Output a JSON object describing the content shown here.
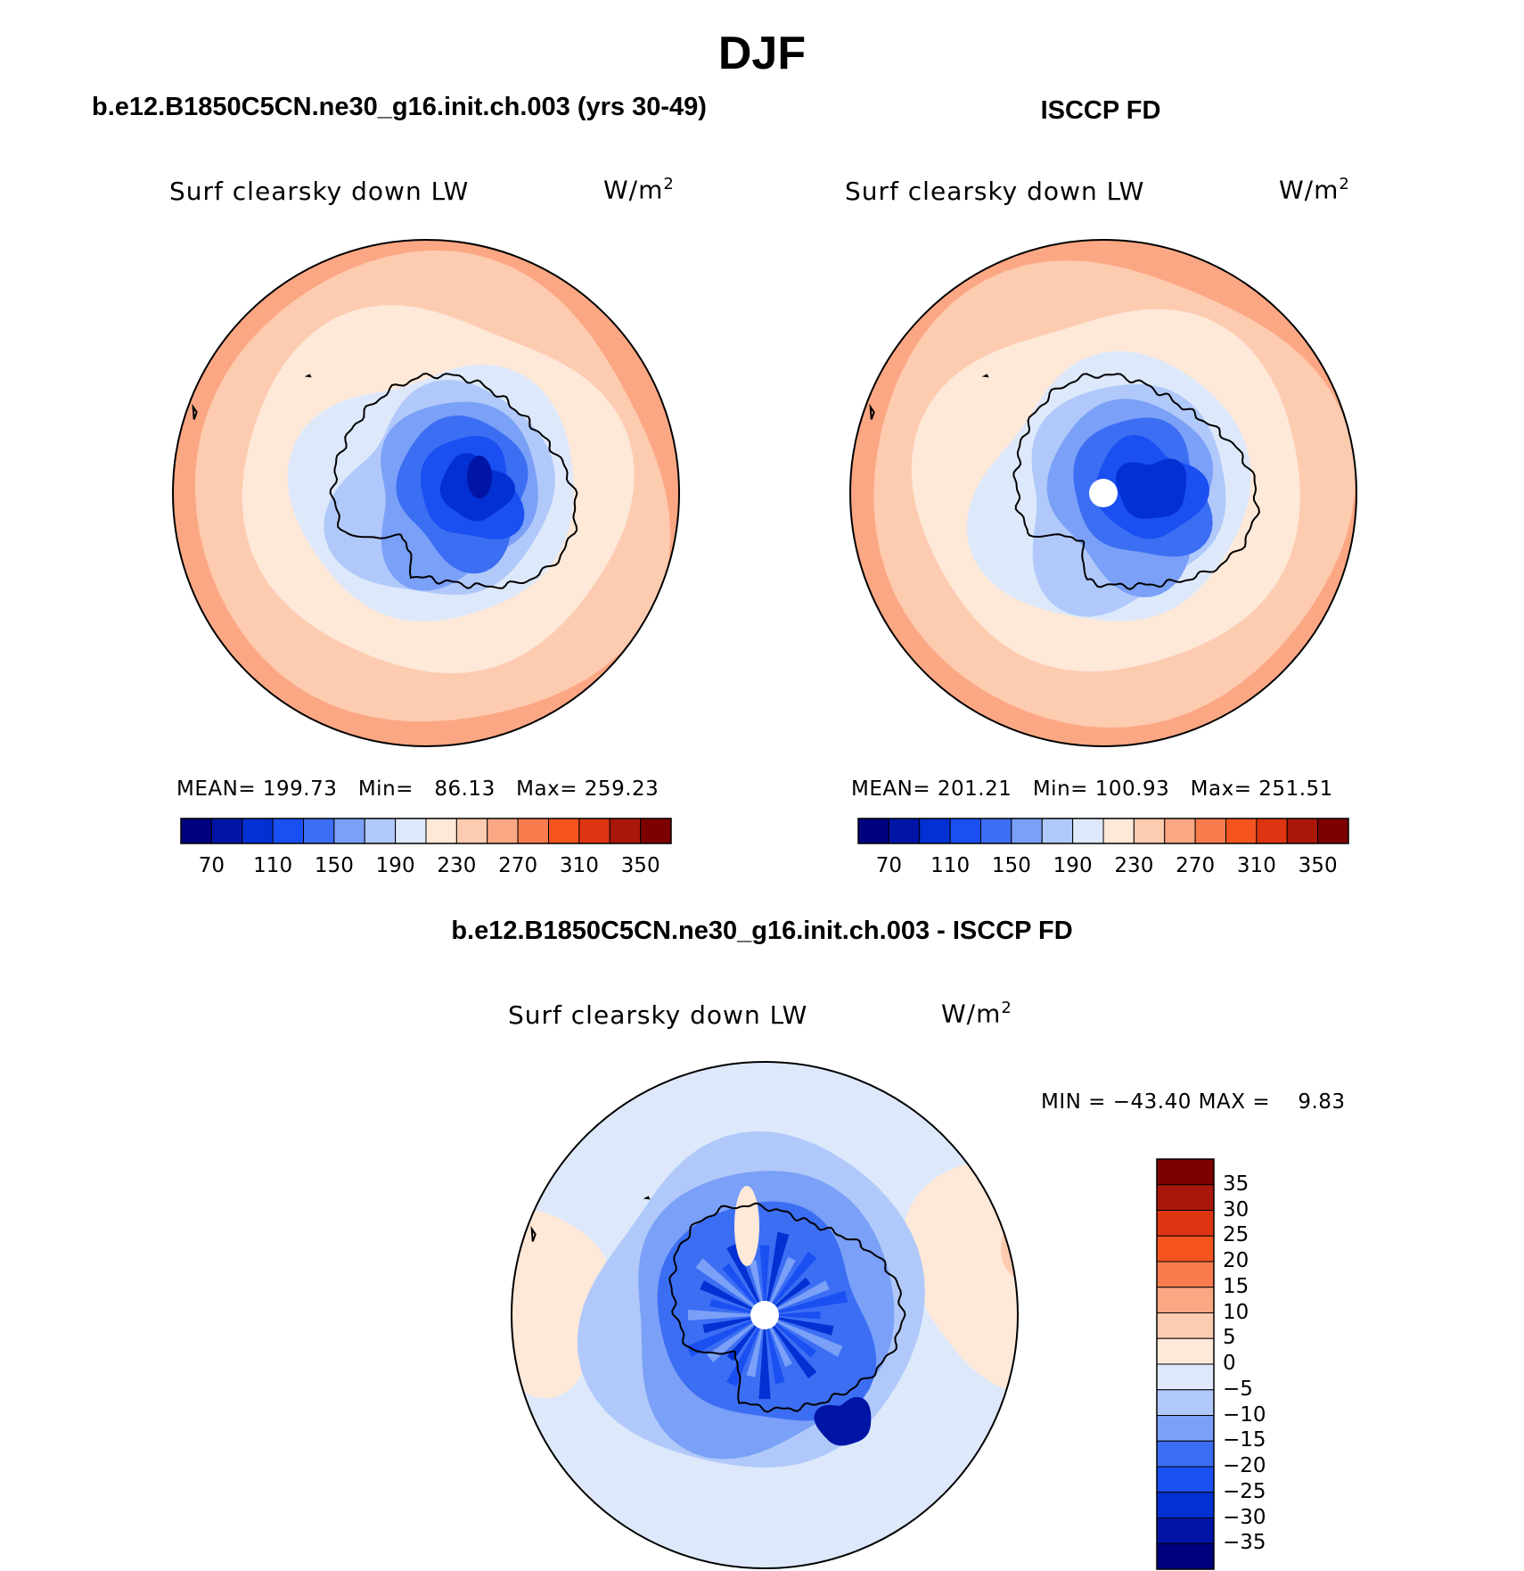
{
  "page_title": "DJF",
  "model_title": "b.e12.B1850C5CN.ne30_g16.init.ch.003 (yrs 30-49)",
  "obs_title": "ISCCP FD",
  "diff_title": "b.e12.B1850C5CN.ne30_g16.init.ch.003 - ISCCP FD",
  "colors": {
    "abs_scale": [
      "#00007f",
      "#0015a6",
      "#0230d2",
      "#1a4ff2",
      "#3c6ef4",
      "#7aa0f7",
      "#b0c9fa",
      "#dde9fb",
      "#fee8d8",
      "#fdcbb0",
      "#fca784",
      "#f97c4f",
      "#f5541f",
      "#dd3512",
      "#a9170b",
      "#7d0000"
    ],
    "diff_scale": [
      "#00007f",
      "#0015a6",
      "#0230d2",
      "#1a4ff2",
      "#3c6ef4",
      "#7aa0f7",
      "#b0c9fa",
      "#dde9fb",
      "#fee8d8",
      "#fdcbb0",
      "#fca784",
      "#f97c4f",
      "#f5541f",
      "#dd3512",
      "#a9170b",
      "#7d0000"
    ]
  },
  "chart_data": [
    {
      "type": "polar-contour-map",
      "panel": "model",
      "title": "b.e12.B1850C5CN.ne30_g16.init.ch.003 (yrs 30-49)",
      "variable": "Surf clearsky down LW",
      "units_base": "W/m",
      "units_exp": "2",
      "stats": {
        "mean_label": "MEAN=",
        "mean": "199.73",
        "min_label": "Min=",
        "min": "86.13",
        "max_label": "Max=",
        "max": "259.23"
      },
      "levels": [
        70,
        110,
        150,
        190,
        230,
        270,
        310,
        350
      ],
      "contour_interval": 20,
      "missing_pole": false
    },
    {
      "type": "polar-contour-map",
      "panel": "obs",
      "title": "ISCCP FD",
      "variable": "Surf clearsky down LW",
      "units_base": "W/m",
      "units_exp": "2",
      "stats": {
        "mean_label": "MEAN=",
        "mean": "201.21",
        "min_label": "Min=",
        "min": "100.93",
        "max_label": "Max=",
        "max": "251.51"
      },
      "levels": [
        70,
        110,
        150,
        190,
        230,
        270,
        310,
        350
      ],
      "contour_interval": 20,
      "missing_pole": true
    },
    {
      "type": "polar-contour-map",
      "panel": "diff",
      "title": "b.e12.B1850C5CN.ne30_g16.init.ch.003 - ISCCP FD",
      "variable": "Surf clearsky down LW",
      "units_base": "W/m",
      "units_exp": "2",
      "stats_text": {
        "min_label": "MIN =",
        "min": "−43.40",
        "max_label": "MAX =",
        "max": "9.83"
      },
      "levels": [
        "35",
        "30",
        "25",
        "20",
        "15",
        "10",
        "5",
        "0",
        "−5",
        "−10",
        "−15",
        "−20",
        "−25",
        "−30",
        "−35"
      ],
      "missing_pole": true
    }
  ]
}
